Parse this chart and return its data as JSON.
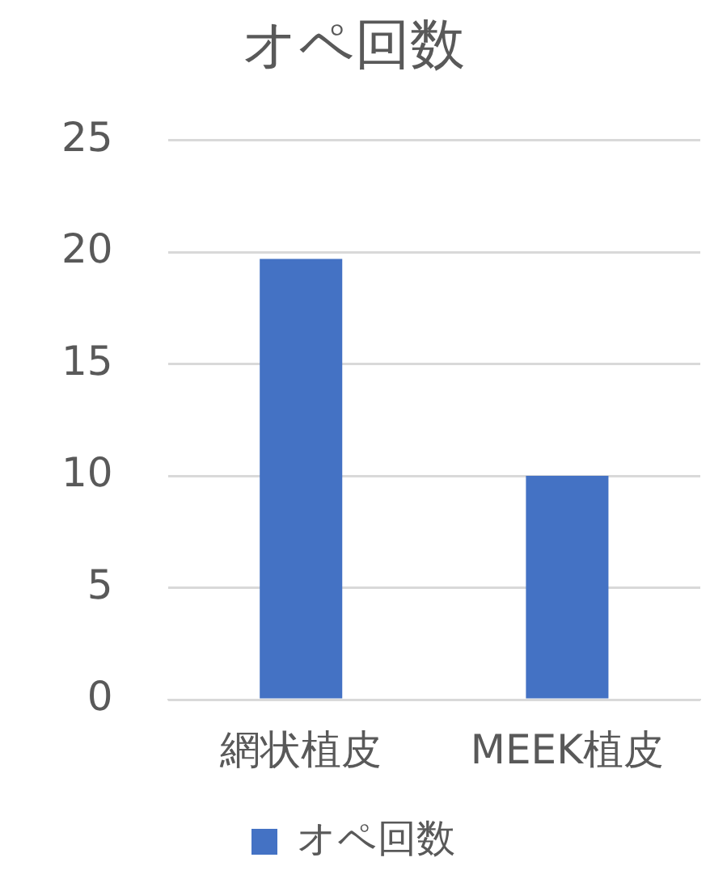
{
  "chart_data": {
    "type": "bar",
    "title": "オペ回数",
    "categories": [
      "網状植皮",
      "MEEK植皮"
    ],
    "series": [
      {
        "name": "オペ回数",
        "color": "#4472c4",
        "values": [
          19.7,
          10
        ]
      }
    ],
    "ylim": [
      0,
      25
    ],
    "yticks": [
      0,
      5,
      10,
      15,
      20,
      25
    ],
    "grid": "y",
    "legend": "bottom"
  }
}
